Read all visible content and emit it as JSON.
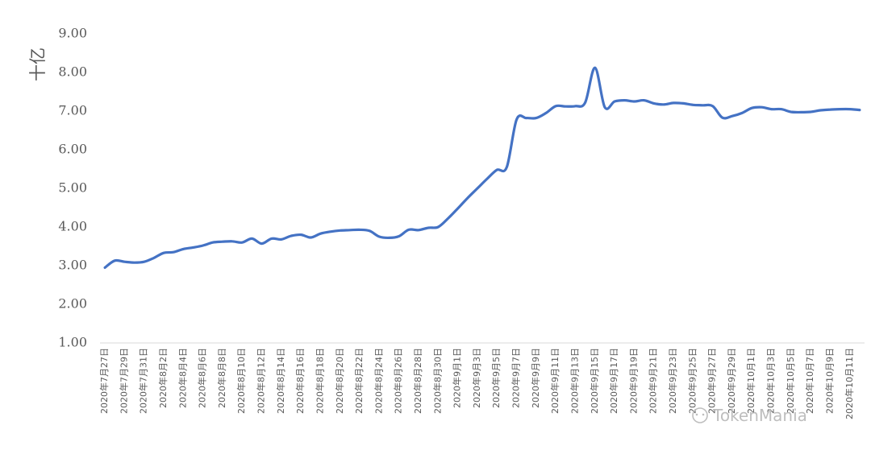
{
  "chart_data": {
    "type": "line",
    "ylabel": "十亿",
    "ylim": [
      1.0,
      9.0
    ],
    "yticks": [
      "1.00",
      "2.00",
      "3.00",
      "4.00",
      "5.00",
      "6.00",
      "7.00",
      "8.00",
      "9.00"
    ],
    "grid": false,
    "legend": "none",
    "line_color": "#4472C4",
    "x": [
      "2020年7月27日",
      "2020年7月28日",
      "2020年7月29日",
      "2020年7月30日",
      "2020年7月31日",
      "2020年8月1日",
      "2020年8月2日",
      "2020年8月3日",
      "2020年8月4日",
      "2020年8月5日",
      "2020年8月6日",
      "2020年8月7日",
      "2020年8月8日",
      "2020年8月9日",
      "2020年8月10日",
      "2020年8月11日",
      "2020年8月12日",
      "2020年8月13日",
      "2020年8月14日",
      "2020年8月15日",
      "2020年8月16日",
      "2020年8月17日",
      "2020年8月18日",
      "2020年8月19日",
      "2020年8月20日",
      "2020年8月21日",
      "2020年8月22日",
      "2020年8月23日",
      "2020年8月24日",
      "2020年8月25日",
      "2020年8月26日",
      "2020年8月27日",
      "2020年8月28日",
      "2020年8月29日",
      "2020年8月30日",
      "2020年8月31日",
      "2020年9月1日",
      "2020年9月2日",
      "2020年9月3日",
      "2020年9月4日",
      "2020年9月5日",
      "2020年9月6日",
      "2020年9月7日",
      "2020年9月8日",
      "2020年9月9日",
      "2020年9月10日",
      "2020年9月11日",
      "2020年9月12日",
      "2020年9月13日",
      "2020年9月14日",
      "2020年9月15日",
      "2020年9月16日",
      "2020年9月17日",
      "2020年9月18日",
      "2020年9月19日",
      "2020年9月20日",
      "2020年9月21日",
      "2020年9月22日",
      "2020年9月23日",
      "2020年9月24日",
      "2020年9月25日",
      "2020年9月26日",
      "2020年9月27日",
      "2020年9月28日",
      "2020年9月29日",
      "2020年9月30日",
      "2020年10月1日",
      "2020年10月2日",
      "2020年10月3日",
      "2020年10月4日",
      "2020年10月5日",
      "2020年10月6日",
      "2020年10月7日",
      "2020年10月8日",
      "2020年10月9日",
      "2020年10月10日",
      "2020年10月11日",
      "2020年10月12日"
    ],
    "xtick_labels": [
      "2020年7月27日",
      "2020年7月29日",
      "2020年7月31日",
      "2020年8月2日",
      "2020年8月4日",
      "2020年8月6日",
      "2020年8月8日",
      "2020年8月10日",
      "2020年8月12日",
      "2020年8月14日",
      "2020年8月16日",
      "2020年8月18日",
      "2020年8月20日",
      "2020年8月22日",
      "2020年8月24日",
      "2020年8月26日",
      "2020年8月28日",
      "2020年8月30日",
      "2020年9月1日",
      "2020年9月3日",
      "2020年9月5日",
      "2020年9月7日",
      "2020年9月9日",
      "2020年9月11日",
      "2020年9月13日",
      "2020年9月15日",
      "2020年9月17日",
      "2020年9月19日",
      "2020年9月21日",
      "2020年9月23日",
      "2020年9月25日",
      "2020年9月27日",
      "2020年9月29日",
      "2020年10月1日",
      "2020年10月3日",
      "2020年10月5日",
      "2020年10月7日",
      "2020年10月9日",
      "2020年10月11日"
    ],
    "series": [
      {
        "values": [
          2.95,
          3.13,
          3.1,
          3.08,
          3.1,
          3.2,
          3.33,
          3.35,
          3.43,
          3.47,
          3.52,
          3.6,
          3.62,
          3.63,
          3.6,
          3.7,
          3.57,
          3.7,
          3.68,
          3.77,
          3.8,
          3.73,
          3.83,
          3.88,
          3.91,
          3.92,
          3.93,
          3.9,
          3.75,
          3.72,
          3.76,
          3.93,
          3.92,
          3.98,
          4.0,
          4.22,
          4.48,
          4.75,
          5.0,
          5.25,
          5.48,
          5.55,
          6.78,
          6.82,
          6.82,
          6.95,
          7.13,
          7.12,
          7.13,
          7.22,
          8.12,
          7.1,
          7.25,
          7.28,
          7.25,
          7.28,
          7.2,
          7.17,
          7.21,
          7.2,
          7.16,
          7.15,
          7.13,
          6.83,
          6.87,
          6.95,
          7.08,
          7.1,
          7.05,
          7.05,
          6.98,
          6.97,
          6.98,
          7.02,
          7.04,
          7.05,
          7.05,
          7.03
        ]
      }
    ]
  },
  "watermark": "TokenMania"
}
